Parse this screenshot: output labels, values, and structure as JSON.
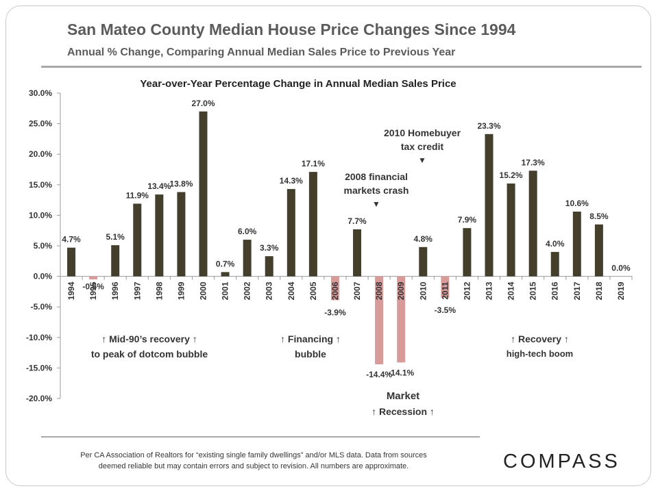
{
  "header": {
    "title": "San Mateo County Median House Price Changes Since 1994",
    "subtitle": "Annual % Change, Comparing Annual Median Sales Price to Previous Year"
  },
  "footer": {
    "note_line1": "Per CA Association  of Realtors for “existing single family dwellings” and/or MLS data. Data from sources",
    "note_line2": "deemed reliable but may contain errors and subject to revision. All numbers are approximate.",
    "logo": "COMPASS"
  },
  "annotations": {
    "mid90s_line1": "↑  Mid-90’s recovery ↑",
    "mid90s_line2": "to peak of dotcom bubble",
    "financing_line1": "↑  Financing  ↑",
    "financing_line2": "bubble",
    "recovery_line1": "↑        Recovery      ↑",
    "recovery_line2": "high-tech boom",
    "market_line1": "Market",
    "market_line2": "↑  Recession ↑",
    "crash2008_line1": "2008 financial",
    "crash2008_line2": "markets crash",
    "credit2010_line1": "2010 Homebuyer",
    "credit2010_line2": "tax credit",
    "arrow_down": "▼"
  },
  "chart_data": {
    "type": "bar",
    "title": "Year-over-Year Percentage Change in Annual Median Sales Price",
    "categories": [
      "1994",
      "1995",
      "1996",
      "1997",
      "1998",
      "1999",
      "2000",
      "2001",
      "2002",
      "2003",
      "2004",
      "2005",
      "2006",
      "2007",
      "2008",
      "2009",
      "2010",
      "2011",
      "2012",
      "2013",
      "2014",
      "2015",
      "2016",
      "2017",
      "2018",
      "2019"
    ],
    "values": [
      4.7,
      -0.5,
      5.1,
      11.9,
      13.4,
      13.8,
      27.0,
      0.7,
      6.0,
      3.3,
      14.3,
      17.1,
      -3.9,
      7.7,
      -14.4,
      -14.1,
      4.8,
      -3.5,
      7.9,
      23.3,
      15.2,
      17.3,
      4.0,
      10.6,
      8.5,
      0.0
    ],
    "data_labels": [
      "4.7%",
      "-0.5%",
      "5.1%",
      "11.9%",
      "13.4%",
      "13.8%",
      "27.0%",
      "0.7%",
      "6.0%",
      "3.3%",
      "14.3%",
      "17.1%",
      "-3.9%",
      "7.7%",
      "-14.4%",
      "-14.1%",
      "4.8%",
      "-3.5%",
      "7.9%",
      "23.3%",
      "15.2%",
      "17.3%",
      "4.0%",
      "10.6%",
      "8.5%",
      "0.0%"
    ],
    "ylim": [
      -20,
      30
    ],
    "yticks": [
      30,
      25,
      20,
      15,
      10,
      5,
      0,
      -5,
      -10,
      -15,
      -20
    ],
    "ytick_labels": [
      "30.0%",
      "25.0%",
      "20.0%",
      "15.0%",
      "10.0%",
      "5.0%",
      "0.0%",
      "-5.0%",
      "-10.0%",
      "-15.0%",
      "-20.0%"
    ],
    "grid": false,
    "colors": {
      "positive": "#443f2c",
      "negative": "#d99a9a",
      "text": "#333333",
      "axis": "#999999"
    }
  }
}
